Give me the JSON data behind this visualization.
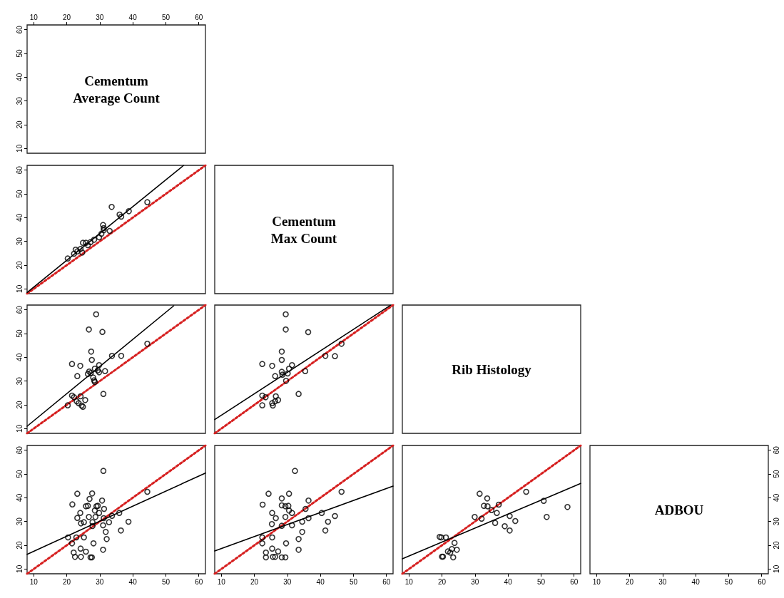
{
  "chart_data": [
    {
      "type": "scatter",
      "title": "Cementum\nAverage Count",
      "xlim": [
        8,
        62
      ],
      "xticks": [
        10,
        20,
        30,
        40,
        50,
        60
      ],
      "ylim": [
        8,
        62
      ],
      "yticks": [
        10,
        20,
        30,
        40,
        50,
        60
      ]
    },
    {
      "type": "scatter",
      "xlim": [
        8,
        62
      ],
      "ylim": [
        8,
        62
      ],
      "yticks": [
        10,
        20,
        30,
        40,
        50,
        60
      ],
      "tick_labels": "y",
      "series": [
        {
          "type": "scatter",
          "marker": "circle",
          "color": "#000000",
          "x": [
            33.6,
            44.4,
            36.0,
            36.5,
            38.8,
            31.0,
            31.2,
            31.2,
            30.5,
            29.8,
            28.3,
            27.2,
            25.8,
            24.9,
            26.4,
            24.2,
            23.2,
            22.7,
            22.2,
            20.3,
            24.7,
            33.0
          ],
          "values": [
            44.5,
            46.5,
            41.3,
            40.4,
            42.7,
            36.9,
            35.6,
            34.7,
            33.2,
            31.7,
            30.7,
            29.7,
            29.4,
            29.4,
            28.4,
            26.8,
            25.8,
            26.5,
            24.8,
            22.8,
            25.3,
            34.4
          ]
        },
        {
          "type": "line",
          "marker": "none",
          "line_style": "solid",
          "color": "#000000",
          "x": [
            8,
            55.4
          ],
          "values": [
            8.5,
            62
          ]
        },
        {
          "type": "line",
          "marker": "none",
          "line_style": "dotted",
          "color": "#d62020",
          "x": [
            8,
            62
          ],
          "values": [
            8,
            62
          ]
        }
      ]
    },
    {
      "type": "other",
      "title": "Cementum\nMax Count"
    },
    {
      "type": "scatter",
      "xlim": [
        8,
        62
      ],
      "ylim": [
        8,
        62
      ],
      "yticks": [
        10,
        20,
        30,
        40,
        50,
        60
      ],
      "tick_labels": "y",
      "series": [
        {
          "type": "scatter",
          "marker": "circle",
          "color": "#000000",
          "x": [
            28.9,
            26.7,
            30.8,
            44.4,
            27.4,
            33.7,
            36.5,
            27.6,
            21.6,
            24.1,
            28.5,
            29.8,
            29.4,
            26.8,
            27.3,
            26.4,
            29.8,
            31.6,
            23.2,
            28.0,
            28.3,
            28.5,
            31.1,
            21.6,
            22.2,
            24.2,
            23.0,
            25.6,
            20.3,
            23.6,
            24.5,
            24.9
          ],
          "values": [
            58.1,
            51.7,
            50.7,
            45.7,
            42.4,
            40.6,
            40.6,
            38.9,
            37.2,
            36.4,
            35.2,
            36.7,
            34.5,
            34.0,
            33.4,
            33.0,
            33.7,
            34.2,
            32.1,
            31.5,
            30.3,
            29.6,
            24.6,
            23.9,
            23.2,
            23.6,
            21.5,
            22.0,
            19.8,
            20.7,
            19.7,
            19.2
          ]
        },
        {
          "type": "line",
          "marker": "none",
          "line_style": "solid",
          "color": "#000000",
          "x": [
            8,
            52.4
          ],
          "values": [
            11.0,
            61.7
          ]
        },
        {
          "type": "line",
          "marker": "none",
          "line_style": "dotted",
          "color": "#d62020",
          "x": [
            8,
            62
          ],
          "values": [
            8,
            62
          ]
        }
      ]
    },
    {
      "type": "scatter",
      "xlim": [
        8,
        62
      ],
      "ylim": [
        8,
        62
      ],
      "tick_labels": false,
      "series": [
        {
          "type": "scatter",
          "marker": "circle",
          "color": "#000000",
          "x": [
            29.5,
            29.5,
            36.3,
            46.4,
            41.5,
            44.4,
            28.3,
            28.3,
            22.4,
            25.4,
            31.4,
            30.5,
            28.3,
            26.3,
            28.5,
            35.4,
            30.1,
            29.6,
            33.4,
            22.4,
            23.4,
            26.5,
            22.4,
            25.4,
            25.6,
            27.2,
            26.3
          ],
          "values": [
            58.1,
            51.7,
            50.6,
            45.7,
            40.6,
            40.5,
            42.4,
            38.9,
            37.2,
            36.4,
            36.7,
            35.2,
            33.9,
            32.1,
            32.7,
            34.2,
            33.2,
            30.1,
            24.6,
            23.9,
            23.2,
            23.6,
            19.8,
            20.7,
            19.7,
            22.0,
            21.5
          ]
        },
        {
          "type": "line",
          "marker": "none",
          "line_style": "solid",
          "color": "#000000",
          "x": [
            8,
            61.2
          ],
          "values": [
            13.8,
            61.9
          ]
        },
        {
          "type": "line",
          "marker": "none",
          "line_style": "dotted",
          "color": "#d62020",
          "x": [
            8,
            62
          ],
          "values": [
            8,
            62
          ]
        }
      ]
    },
    {
      "type": "other",
      "title": "Rib Histology"
    },
    {
      "type": "scatter",
      "xlim": [
        8,
        62
      ],
      "ylim": [
        8,
        62
      ],
      "xticks": [
        10,
        20,
        30,
        40,
        50,
        60
      ],
      "yticks": [
        10,
        20,
        30,
        40,
        50,
        60
      ],
      "series": [
        {
          "type": "scatter",
          "marker": "circle",
          "color": "#000000",
          "x": [
            31.1,
            23.2,
            27.7,
            21.7,
            26.9,
            30.7,
            25.8,
            26.4,
            29.0,
            29.4,
            28.5,
            31.3,
            24.1,
            29.8,
            35.9,
            23.2,
            26.7,
            28.7,
            31.2,
            33.7,
            25.2,
            24.3,
            27.8,
            31.0,
            32.8,
            38.7,
            27.8,
            20.4,
            22.9,
            25.2,
            31.8,
            36.4,
            21.6,
            28.1,
            32.1,
            24.2,
            25.8,
            22.1,
            31.0,
            22.5,
            24.3,
            27.2,
            27.6,
            44.4
          ],
          "values": [
            51.3,
            41.7,
            41.8,
            37.2,
            39.5,
            38.8,
            36.4,
            36.6,
            36.4,
            36.6,
            34.6,
            35.3,
            33.6,
            33.6,
            33.6,
            31.5,
            31.9,
            31.9,
            31.4,
            32.4,
            29.7,
            29.2,
            29.7,
            28.4,
            29.7,
            29.9,
            28.1,
            23.3,
            23.3,
            23.3,
            25.6,
            26.2,
            20.8,
            20.8,
            22.6,
            18.6,
            17.3,
            16.9,
            18.1,
            15.1,
            15.1,
            14.9,
            14.9,
            42.5
          ]
        },
        {
          "type": "line",
          "marker": "none",
          "line_style": "solid",
          "color": "#000000",
          "x": [
            8,
            62
          ],
          "values": [
            16.2,
            50.4
          ]
        },
        {
          "type": "line",
          "marker": "none",
          "line_style": "dotted",
          "color": "#d62020",
          "x": [
            8,
            62
          ],
          "values": [
            8,
            62
          ]
        }
      ]
    },
    {
      "type": "scatter",
      "xlim": [
        8,
        62
      ],
      "ylim": [
        8,
        62
      ],
      "xticks": [
        10,
        20,
        30,
        40,
        50,
        60
      ],
      "tick_labels": "x",
      "series": [
        {
          "type": "scatter",
          "marker": "circle",
          "color": "#000000",
          "x": [
            32.3,
            24.3,
            30.5,
            28.3,
            46.4,
            22.5,
            36.4,
            28.3,
            29.4,
            30.3,
            30.5,
            31.4,
            35.5,
            25.4,
            26.5,
            29.4,
            36.4,
            40.4,
            44.4,
            42.3,
            34.5,
            31.4,
            25.3,
            28.3,
            34.5,
            41.5,
            22.4,
            25.4,
            33.4,
            22.4,
            29.6,
            33.4,
            25.4,
            27.2,
            23.5,
            23.5,
            25.6,
            26.3,
            28.3,
            29.4
          ],
          "values": [
            51.3,
            41.7,
            41.7,
            39.7,
            42.5,
            37.1,
            38.8,
            36.8,
            36.4,
            36.6,
            34.6,
            33.6,
            35.3,
            33.6,
            31.4,
            31.9,
            31.4,
            33.6,
            32.3,
            29.9,
            29.9,
            28.4,
            28.9,
            28.2,
            25.6,
            26.2,
            23.3,
            23.3,
            22.6,
            20.8,
            20.8,
            18.1,
            18.6,
            17.4,
            16.9,
            14.9,
            15.1,
            15.1,
            14.9,
            14.9
          ]
        },
        {
          "type": "line",
          "marker": "none",
          "line_style": "solid",
          "color": "#000000",
          "x": [
            8,
            62
          ],
          "values": [
            17.6,
            44.9
          ]
        },
        {
          "type": "line",
          "marker": "none",
          "line_style": "dotted",
          "color": "#d62020",
          "x": [
            8,
            62
          ],
          "values": [
            8,
            62
          ]
        }
      ]
    },
    {
      "type": "scatter",
      "xlim": [
        8,
        62
      ],
      "ylim": [
        8,
        62
      ],
      "xticks": [
        10,
        20,
        30,
        40,
        50,
        60
      ],
      "tick_labels": "x",
      "series": [
        {
          "type": "scatter",
          "marker": "circle",
          "color": "#000000",
          "x": [
            31.4,
            33.7,
            45.5,
            32.7,
            33.8,
            37.2,
            35.0,
            36.6,
            50.8,
            58.0,
            29.9,
            32.0,
            40.5,
            36.1,
            42.2,
            51.7,
            39.0,
            40.5,
            19.3,
            19.8,
            21.2,
            23.8,
            21.8,
            23.0,
            24.5,
            22.5,
            23.4,
            20.0,
            20.3
          ],
          "values": [
            41.7,
            39.7,
            42.5,
            36.6,
            36.4,
            37.1,
            34.8,
            33.6,
            38.7,
            36.1,
            31.9,
            31.2,
            32.3,
            29.4,
            30.2,
            31.9,
            28.0,
            26.2,
            23.5,
            23.3,
            23.3,
            21.0,
            17.4,
            18.4,
            18.1,
            16.9,
            14.9,
            15.2,
            15.2
          ]
        },
        {
          "type": "line",
          "marker": "none",
          "line_style": "solid",
          "color": "#000000",
          "x": [
            8,
            62
          ],
          "values": [
            14.3,
            46.0
          ]
        },
        {
          "type": "line",
          "marker": "none",
          "line_style": "dotted",
          "color": "#d62020",
          "x": [
            8,
            62
          ],
          "values": [
            8,
            62
          ]
        }
      ]
    },
    {
      "type": "scatter",
      "title": "ADBOU",
      "xlim": [
        8,
        62
      ],
      "xticks": [
        10,
        20,
        30,
        40,
        50,
        60
      ],
      "y2lim": [
        8,
        62
      ],
      "y2ticks": [
        10,
        20,
        30,
        40,
        50,
        60
      ]
    }
  ]
}
